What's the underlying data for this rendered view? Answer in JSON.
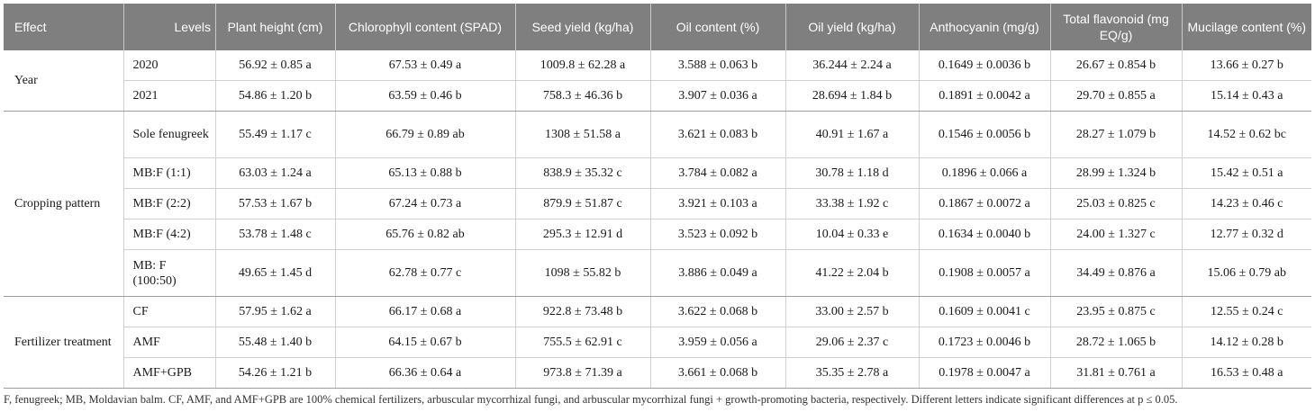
{
  "headers": [
    "Effect",
    "Levels",
    "Plant height (cm)",
    "Chlorophyll content (SPAD)",
    "Seed yield (kg/ha)",
    "Oil content (%)",
    "Oil yield (kg/ha)",
    "Anthocyanin (mg/g)",
    "Total flavonoid (mg EQ/g)",
    "Mucilage content (%)"
  ],
  "groups": [
    {
      "effect": "Year",
      "rows": [
        {
          "level": "2020",
          "values": [
            "56.92 ± 0.85 a",
            "67.53 ± 0.49 a",
            "1009.8 ± 62.28 a",
            "3.588 ± 0.063 b",
            "36.244 ± 2.24 a",
            "0.1649 ± 0.0036 b",
            "26.67 ± 0.854 b",
            "13.66 ± 0.27 b"
          ]
        },
        {
          "level": "2021",
          "values": [
            "54.86 ± 1.20 b",
            "63.59 ± 0.46 b",
            "758.3 ± 46.36 b",
            "3.907 ± 0.036 a",
            "28.694 ± 1.84 b",
            "0.1891 ± 0.0042 a",
            "29.70 ± 0.855 a",
            "15.14 ± 0.43 a"
          ]
        }
      ]
    },
    {
      "effect": "Cropping pattern",
      "rows": [
        {
          "level": "Sole fenugreek",
          "values": [
            "55.49 ± 1.17 c",
            "66.79 ± 0.89 ab",
            "1308 ± 51.58 a",
            "3.621 ± 0.083 b",
            "40.91 ± 1.67 a",
            "0.1546 ± 0.0056 b",
            "28.27 ± 1.079 b",
            "14.52 ± 0.62 bc"
          ]
        },
        {
          "level": "MB:F (1:1)",
          "values": [
            "63.03 ± 1.24 a",
            "65.13 ± 0.88 b",
            "838.9 ± 35.32 c",
            "3.784 ± 0.082 a",
            "30.78 ± 1.18 d",
            "0.1896 ± 0.066 a",
            "28.99 ± 1.324 b",
            "15.42 ± 0.51 a"
          ]
        },
        {
          "level": "MB:F (2:2)",
          "values": [
            "57.53 ± 1.67 b",
            "67.24 ± 0.73 a",
            "879.9 ± 51.87 c",
            "3.921 ± 0.103 a",
            "33.38 ± 1.92 c",
            "0.1867 ± 0.0072 a",
            "25.03 ± 0.825 c",
            "14.23 ± 0.46 c"
          ]
        },
        {
          "level": "MB:F (4:2)",
          "values": [
            "53.78 ± 1.48 c",
            "65.76 ± 0.82 ab",
            "295.3 ± 12.91 d",
            "3.523 ± 0.092 b",
            "10.04 ± 0.33 e",
            "0.1634 ± 0.0040 b",
            "24.00 ± 1.327 c",
            "12.77 ± 0.32 d"
          ]
        },
        {
          "level": "MB: F (100:50)",
          "values": [
            "49.65 ± 1.45 d",
            "62.78 ± 0.77 c",
            "1098 ± 55.82 b",
            "3.886 ± 0.049 a",
            "41.22 ± 2.04 b",
            "0.1908 ± 0.0057 a",
            "34.49 ± 0.876 a",
            "15.06 ± 0.79 ab"
          ]
        }
      ]
    },
    {
      "effect": "Fertilizer treatment",
      "rows": [
        {
          "level": "CF",
          "values": [
            "57.95 ± 1.62 a",
            "66.17 ± 0.68 a",
            "922.8 ± 73.48 b",
            "3.622 ± 0.068 b",
            "33.00 ± 2.57 b",
            "0.1609 ± 0.0041 c",
            "23.95 ± 0.875 c",
            "12.55 ± 0.24 c"
          ]
        },
        {
          "level": "AMF",
          "values": [
            "55.48 ± 1.40 b",
            "64.15 ± 0.67 b",
            "755.5 ± 62.91 c",
            "3.959 ± 0.056 a",
            "29.06 ± 2.37 c",
            "0.1723 ± 0.0046 b",
            "28.72 ± 1.065 b",
            "14.12 ± 0.28 b"
          ]
        },
        {
          "level": "AMF+GPB",
          "values": [
            "54.26 ± 1.21 b",
            "66.36 ± 0.64 a",
            "973.8 ± 71.39 a",
            "3.661 ± 0.068 b",
            "35.35 ± 2.78 a",
            "0.1978 ± 0.0047 a",
            "31.81 ± 0.761 a",
            "16.53 ± 0.48 a"
          ]
        }
      ]
    }
  ],
  "footnote": "F, fenugreek; MB, Moldavian balm. CF, AMF, and AMF+GPB are 100% chemical fertilizers, arbuscular mycorrhizal fungi, and arbuscular mycorrhizal fungi + growth-promoting bacteria, respectively. Different letters indicate significant differences at p ≤ 0.05."
}
